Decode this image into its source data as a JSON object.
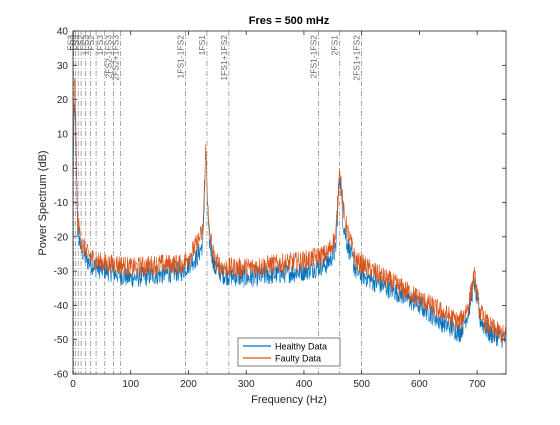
{
  "chart_data": {
    "type": "line",
    "title": "Fres = 500 mHz",
    "xlabel": "Frequency (Hz)",
    "ylabel": "Power Spectrum (dB)",
    "xlim": [
      0,
      750
    ],
    "ylim": [
      -60,
      40
    ],
    "xticks": [
      0,
      100,
      200,
      300,
      400,
      500,
      600,
      700
    ],
    "yticks": [
      -60,
      -50,
      -40,
      -30,
      -20,
      -10,
      0,
      10,
      20,
      30,
      40
    ],
    "grid": false,
    "legend_position": "bottom-center",
    "colors": {
      "healthy": "#0072BD",
      "faulty": "#D95319",
      "axis": "#262626",
      "marker": "#808080"
    },
    "series": [
      {
        "name": "Healthy Data",
        "color": "#0072BD",
        "x": [
          0,
          3,
          8,
          15,
          25,
          40,
          60,
          80,
          100,
          150,
          190,
          200,
          215,
          225,
          230,
          235,
          245,
          260,
          300,
          350,
          400,
          440,
          455,
          462,
          468,
          475,
          490,
          520,
          560,
          600,
          640,
          670,
          685,
          695,
          705,
          720,
          750
        ],
        "y": [
          0,
          20,
          -18,
          -24,
          -27,
          -29,
          -30,
          -31,
          -32,
          -31,
          -30,
          -28,
          -26,
          -22,
          5,
          -20,
          -29,
          -31,
          -32,
          -31,
          -30,
          -28,
          -24,
          -1,
          -16,
          -22,
          -30,
          -33,
          -36,
          -40,
          -45,
          -48,
          -42,
          -33,
          -44,
          -48,
          -50
        ]
      },
      {
        "name": "Faulty Data",
        "color": "#D95319",
        "x": [
          0,
          3,
          8,
          15,
          25,
          40,
          60,
          80,
          100,
          150,
          190,
          200,
          215,
          225,
          230,
          235,
          245,
          260,
          300,
          350,
          400,
          440,
          455,
          462,
          468,
          475,
          490,
          520,
          560,
          600,
          640,
          670,
          685,
          695,
          705,
          720,
          750
        ],
        "y": [
          0,
          30,
          -15,
          -22,
          -25,
          -27,
          -28,
          -28,
          -29,
          -28,
          -28,
          -26,
          -22,
          -18,
          6,
          -17,
          -27,
          -29,
          -29,
          -28,
          -27,
          -25,
          -20,
          1,
          -12,
          -18,
          -27,
          -30,
          -34,
          -38,
          -42,
          -45,
          -40,
          -31,
          -42,
          -46,
          -49
        ]
      }
    ],
    "markers": [
      {
        "x": 1,
        "label": ""
      },
      {
        "x": 4,
        "label": "FS3"
      },
      {
        "x": 9,
        "label": "FS3"
      },
      {
        "x": 14,
        "label": "FS3"
      },
      {
        "x": 22,
        "label": "FS2"
      },
      {
        "x": 30,
        "label": "1FS3"
      },
      {
        "x": 40,
        "label": "FS2"
      },
      {
        "x": 55,
        "label": "1FS3"
      },
      {
        "x": 70,
        "label": "2FS2-1FS3"
      },
      {
        "x": 82,
        "label": "2FS2+1FS3"
      },
      {
        "x": 195,
        "label": "1FS1-1FS2"
      },
      {
        "x": 232,
        "label": "1FS1"
      },
      {
        "x": 270,
        "label": "1FS1+1FS2"
      },
      {
        "x": 425,
        "label": "2FS1-1FS2"
      },
      {
        "x": 462,
        "label": "2FS1"
      },
      {
        "x": 500,
        "label": "2FS1+1FS2"
      }
    ]
  }
}
